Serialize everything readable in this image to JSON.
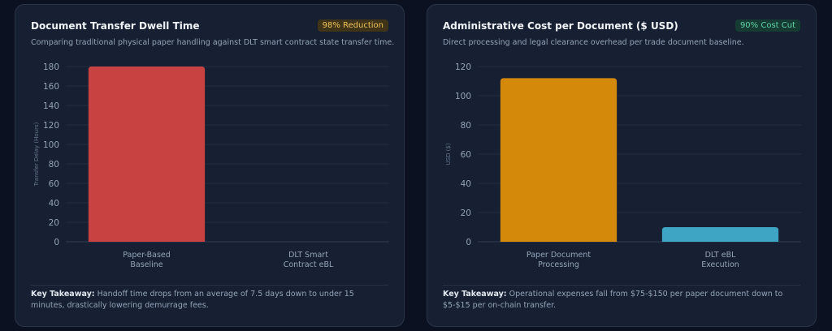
{
  "cards": [
    {
      "title": "Document Transfer Dwell Time",
      "badge": "98% Reduction",
      "subtitle": "Comparing traditional physical paper handling against DLT smart contract state transfer time.",
      "takeaway_label": "Key Takeaway:",
      "takeaway_text": "Handoff time drops from an average of 7.5 days down to under 15 minutes, drastically lowering demurrage fees."
    },
    {
      "title": "Administrative Cost per Document ($ USD)",
      "badge": "90% Cost Cut",
      "subtitle": "Direct processing and legal clearance overhead per trade document baseline.",
      "takeaway_label": "Key Takeaway:",
      "takeaway_text": "Operational expenses fall from $75-$150 per paper document down to $5-$15 per on-chain transfer."
    }
  ],
  "chart_data": [
    {
      "type": "bar",
      "categories": [
        [
          "Paper-Based",
          "Baseline"
        ],
        [
          "DLT Smart",
          "Contract eBL"
        ]
      ],
      "values": [
        180,
        0.25
      ],
      "colors": [
        "#c94242",
        "#c94242"
      ],
      "ylabel": "Transfer Delay (Hours)",
      "ylim": [
        0,
        180
      ],
      "yticks": [
        0,
        20,
        40,
        60,
        80,
        100,
        120,
        140,
        160,
        180
      ],
      "grid": true
    },
    {
      "type": "bar",
      "categories": [
        [
          "Paper Document",
          "Processing"
        ],
        [
          "DLT eBL",
          "Execution"
        ]
      ],
      "values": [
        112,
        10
      ],
      "colors": [
        "#d4890b",
        "#3ea5c4"
      ],
      "ylabel": "USD ($)",
      "ylim": [
        0,
        120
      ],
      "yticks": [
        0,
        20,
        40,
        60,
        80,
        100,
        120
      ],
      "grid": true
    }
  ]
}
